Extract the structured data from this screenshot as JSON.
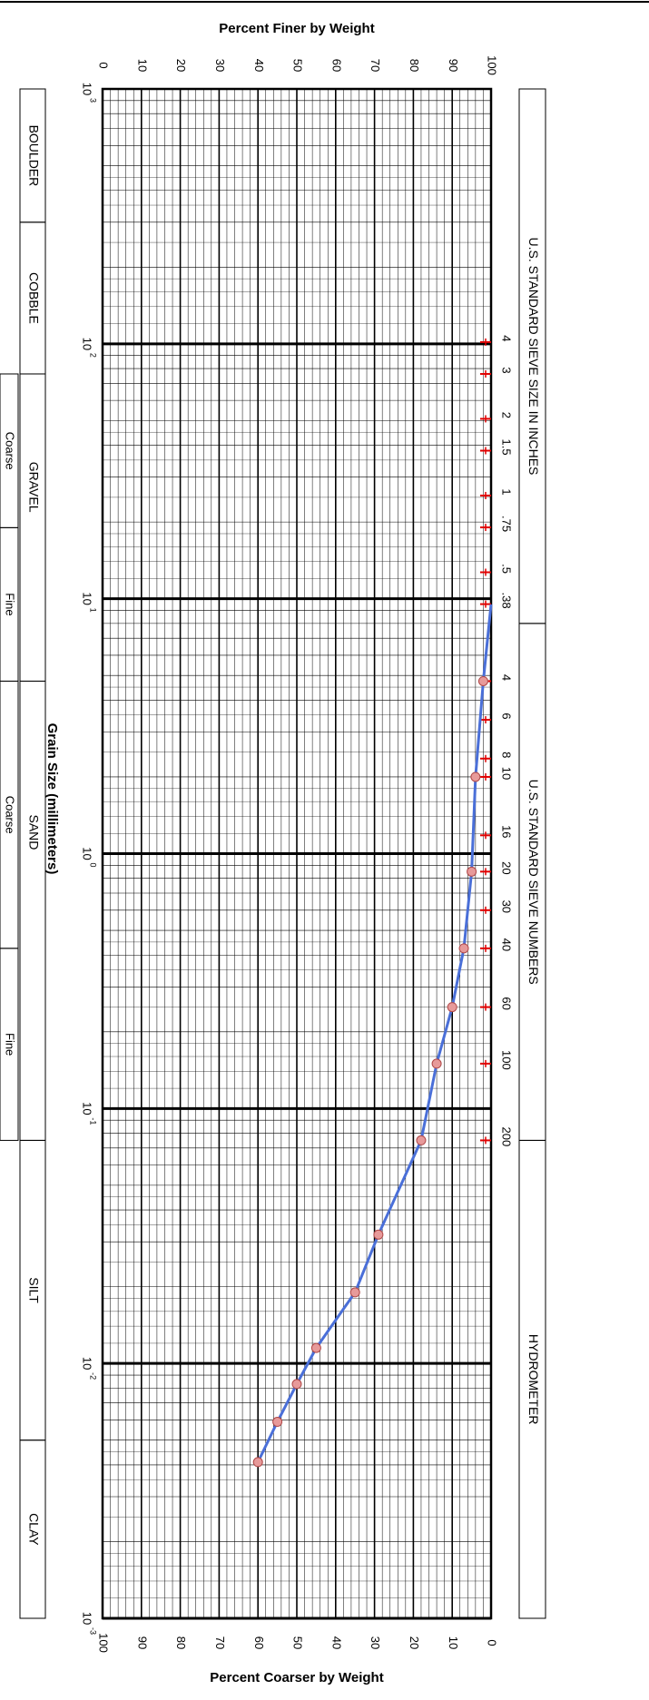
{
  "chart_data": {
    "type": "line",
    "title": "",
    "x_axis": {
      "label": "Grain Size (millimeters)",
      "scale": "log",
      "range": [
        1000,
        0.001
      ],
      "tick_labels": [
        "10^3",
        "10^2",
        "10^1",
        "10^0",
        "10^-1",
        "10^-2",
        "10^-3"
      ]
    },
    "y_axis": {
      "label": "Percent Finer by Weight",
      "range": [
        0,
        100
      ],
      "tick_labels": [
        "0",
        "10",
        "20",
        "30",
        "40",
        "50",
        "60",
        "70",
        "80",
        "90",
        "100"
      ]
    },
    "y2_axis": {
      "label": "Percent Coarser by Weight",
      "range": [
        100,
        0
      ],
      "tick_labels": [
        "100",
        "90",
        "80",
        "70",
        "60",
        "50",
        "40",
        "30",
        "20",
        "10",
        "0"
      ]
    },
    "grid": true,
    "series": [
      {
        "x": [
          9.5,
          4.75,
          2.0,
          0.85,
          0.425,
          0.25,
          0.15,
          0.075,
          0.032,
          0.019,
          0.0115,
          0.0083,
          0.0059,
          0.0041
        ],
        "y": [
          100,
          98,
          96,
          95,
          93,
          90,
          86,
          82,
          71,
          65,
          55,
          50,
          45,
          40
        ],
        "color": "#4a6fd8",
        "marker_color": "#e79a9a"
      }
    ],
    "sieve_sizes_inches": {
      "title": "U.S. STANDARD SIEVE SIZE IN INCHES",
      "labels": [
        "4",
        "3",
        "2",
        "1.5",
        "1",
        ".75",
        ".5",
        ".38"
      ],
      "openings_mm": [
        101.6,
        76.2,
        50.8,
        38.1,
        25.4,
        19.05,
        12.7,
        9.525
      ]
    },
    "sieve_numbers": {
      "title": "U.S. STANDARD SIEVE NUMBERS",
      "labels": [
        "4",
        "6",
        "8",
        "10",
        "16",
        "20",
        "30",
        "40",
        "60",
        "100",
        "200"
      ],
      "openings_mm": [
        4.75,
        3.35,
        2.36,
        2.0,
        1.18,
        0.85,
        0.6,
        0.425,
        0.25,
        0.15,
        0.075
      ]
    },
    "hydrometer_label": "HYDROMETER",
    "soil_classes": [
      {
        "name": "BOULDER",
        "from_mm": 1000,
        "to_mm": 300
      },
      {
        "name": "COBBLE",
        "from_mm": 300,
        "to_mm": 76.2
      },
      {
        "name": "GRAVEL",
        "from_mm": 76.2,
        "to_mm": 4.75,
        "sub": [
          {
            "name": "Coarse",
            "from_mm": 76.2,
            "to_mm": 19
          },
          {
            "name": "Fine",
            "from_mm": 19,
            "to_mm": 4.75
          }
        ]
      },
      {
        "name": "SAND",
        "from_mm": 4.75,
        "to_mm": 0.075,
        "sub": [
          {
            "name": "Coarse",
            "from_mm": 4.75,
            "to_mm": 0.425
          },
          {
            "name": "Fine",
            "from_mm": 0.425,
            "to_mm": 0.075
          }
        ]
      },
      {
        "name": "SILT",
        "from_mm": 0.075,
        "to_mm": 0.005
      },
      {
        "name": "CLAY",
        "from_mm": 0.005,
        "to_mm": 0.001
      }
    ],
    "colors": {
      "grid": "#000000",
      "curve": "#4a6fd8",
      "marker_fill": "#e79a9a",
      "marker_stroke": "#b04848",
      "sieve_tick": "#e00000"
    }
  }
}
